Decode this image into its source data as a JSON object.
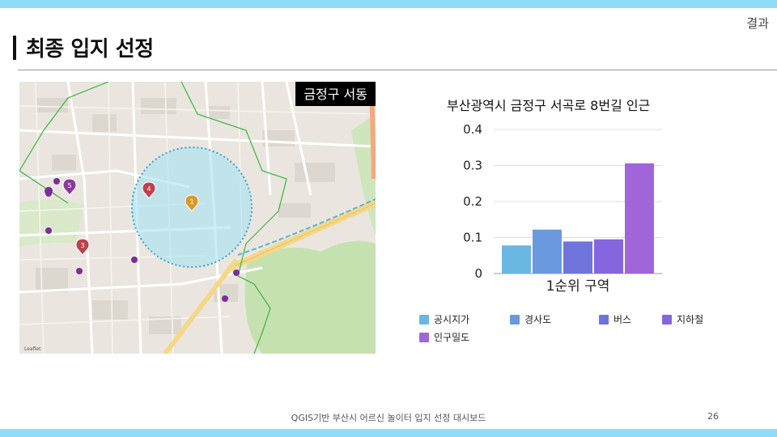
{
  "section_tag": "결과",
  "title": "최종 입지 선정",
  "map": {
    "label": "금정구 서동",
    "markers": [
      "1",
      "3",
      "4",
      "5"
    ],
    "attribution": "Leaflet"
  },
  "chart_data": {
    "type": "bar",
    "title": "부산광역시 금정구 서곡로 8번길 인근",
    "categories": [
      "1순위 구역"
    ],
    "series": [
      {
        "name": "공시지가",
        "values": [
          0.078
        ],
        "color": "#6ab7e2"
      },
      {
        "name": "경사도",
        "values": [
          0.122
        ],
        "color": "#6b99de"
      },
      {
        "name": "버스",
        "values": [
          0.089
        ],
        "color": "#6f74dd"
      },
      {
        "name": "지하철",
        "values": [
          0.095
        ],
        "color": "#8566de"
      },
      {
        "name": "인구밀도",
        "values": [
          0.306
        ],
        "color": "#a066d9"
      }
    ],
    "ylim": [
      0,
      0.4
    ],
    "yticks": [
      "0",
      "0.1",
      "0.2",
      "0.3",
      "0.4"
    ],
    "legend_position": "bottom",
    "grid": true
  },
  "footer": "QGIS기반 부산시 어르신 놀이터 입지 선정 대시보드",
  "page_number": "26"
}
